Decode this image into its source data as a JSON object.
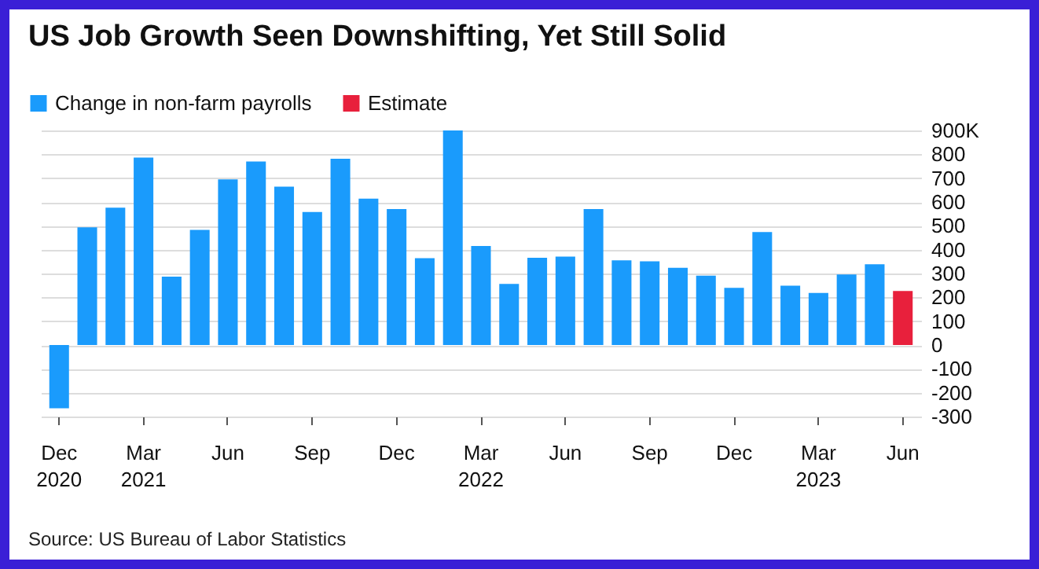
{
  "chart_data": {
    "type": "bar",
    "title": "US Job Growth Seen Downshifting, Yet Still Solid",
    "categories": [
      "Dec 2020",
      null,
      null,
      "Mar 2021",
      null,
      null,
      "Jun",
      null,
      null,
      "Sep",
      null,
      null,
      "Dec",
      null,
      null,
      "Mar 2022",
      null,
      null,
      "Jun",
      null,
      null,
      "Sep",
      null,
      null,
      "Dec",
      null,
      null,
      "Mar 2023",
      null,
      null,
      "Jun"
    ],
    "series": [
      {
        "name": "Change in non-farm payrolls",
        "color": "#1a9bfc",
        "values": [
          -265,
          494,
          576,
          786,
          287,
          483,
          695,
          770,
          664,
          558,
          781,
          614,
          570,
          364,
          900,
          415,
          256,
          366,
          371,
          570,
          355,
          351,
          324,
          291,
          240,
          474,
          249,
          218,
          296,
          339,
          null
        ]
      },
      {
        "name": "Estimate",
        "color": "#e8203c",
        "values": [
          null,
          null,
          null,
          null,
          null,
          null,
          null,
          null,
          null,
          null,
          null,
          null,
          null,
          null,
          null,
          null,
          null,
          null,
          null,
          null,
          null,
          null,
          null,
          null,
          null,
          null,
          null,
          null,
          null,
          null,
          227
        ]
      }
    ],
    "ylim": [
      -300,
      900
    ],
    "yticks": [
      -300,
      -200,
      -100,
      0,
      100,
      200,
      300,
      400,
      500,
      600,
      700,
      800,
      {
        "value": 900,
        "label": "900K"
      }
    ],
    "grid": "y",
    "legend": "top left",
    "annotations": [
      "Source: US Bureau of Labor Statistics"
    ]
  }
}
